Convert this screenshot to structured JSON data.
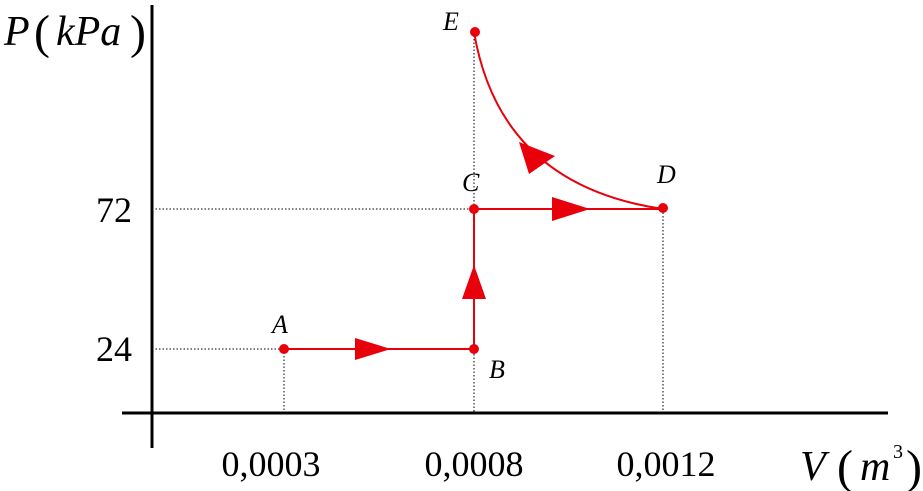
{
  "chart_data": {
    "type": "pv-diagram",
    "y_axis": {
      "symbol": "P",
      "unit": "kPa"
    },
    "x_axis": {
      "symbol": "V",
      "unit": "m",
      "unit_exponent": "3"
    },
    "y_ticks": [
      "72",
      "24"
    ],
    "x_ticks": [
      "0,0003",
      "0,0008",
      "0,0012"
    ],
    "points": [
      {
        "label": "A",
        "V": 0.0003,
        "P": 24
      },
      {
        "label": "B",
        "V": 0.0008,
        "P": 24
      },
      {
        "label": "C",
        "V": 0.0008,
        "P": 72
      },
      {
        "label": "D",
        "V": 0.0012,
        "P": 72
      },
      {
        "label": "E",
        "V": 0.0008
      }
    ],
    "process_path": [
      "A",
      "B",
      "C",
      "D",
      "E"
    ],
    "process_color": "#e8000b",
    "axis_color": "#000000"
  }
}
